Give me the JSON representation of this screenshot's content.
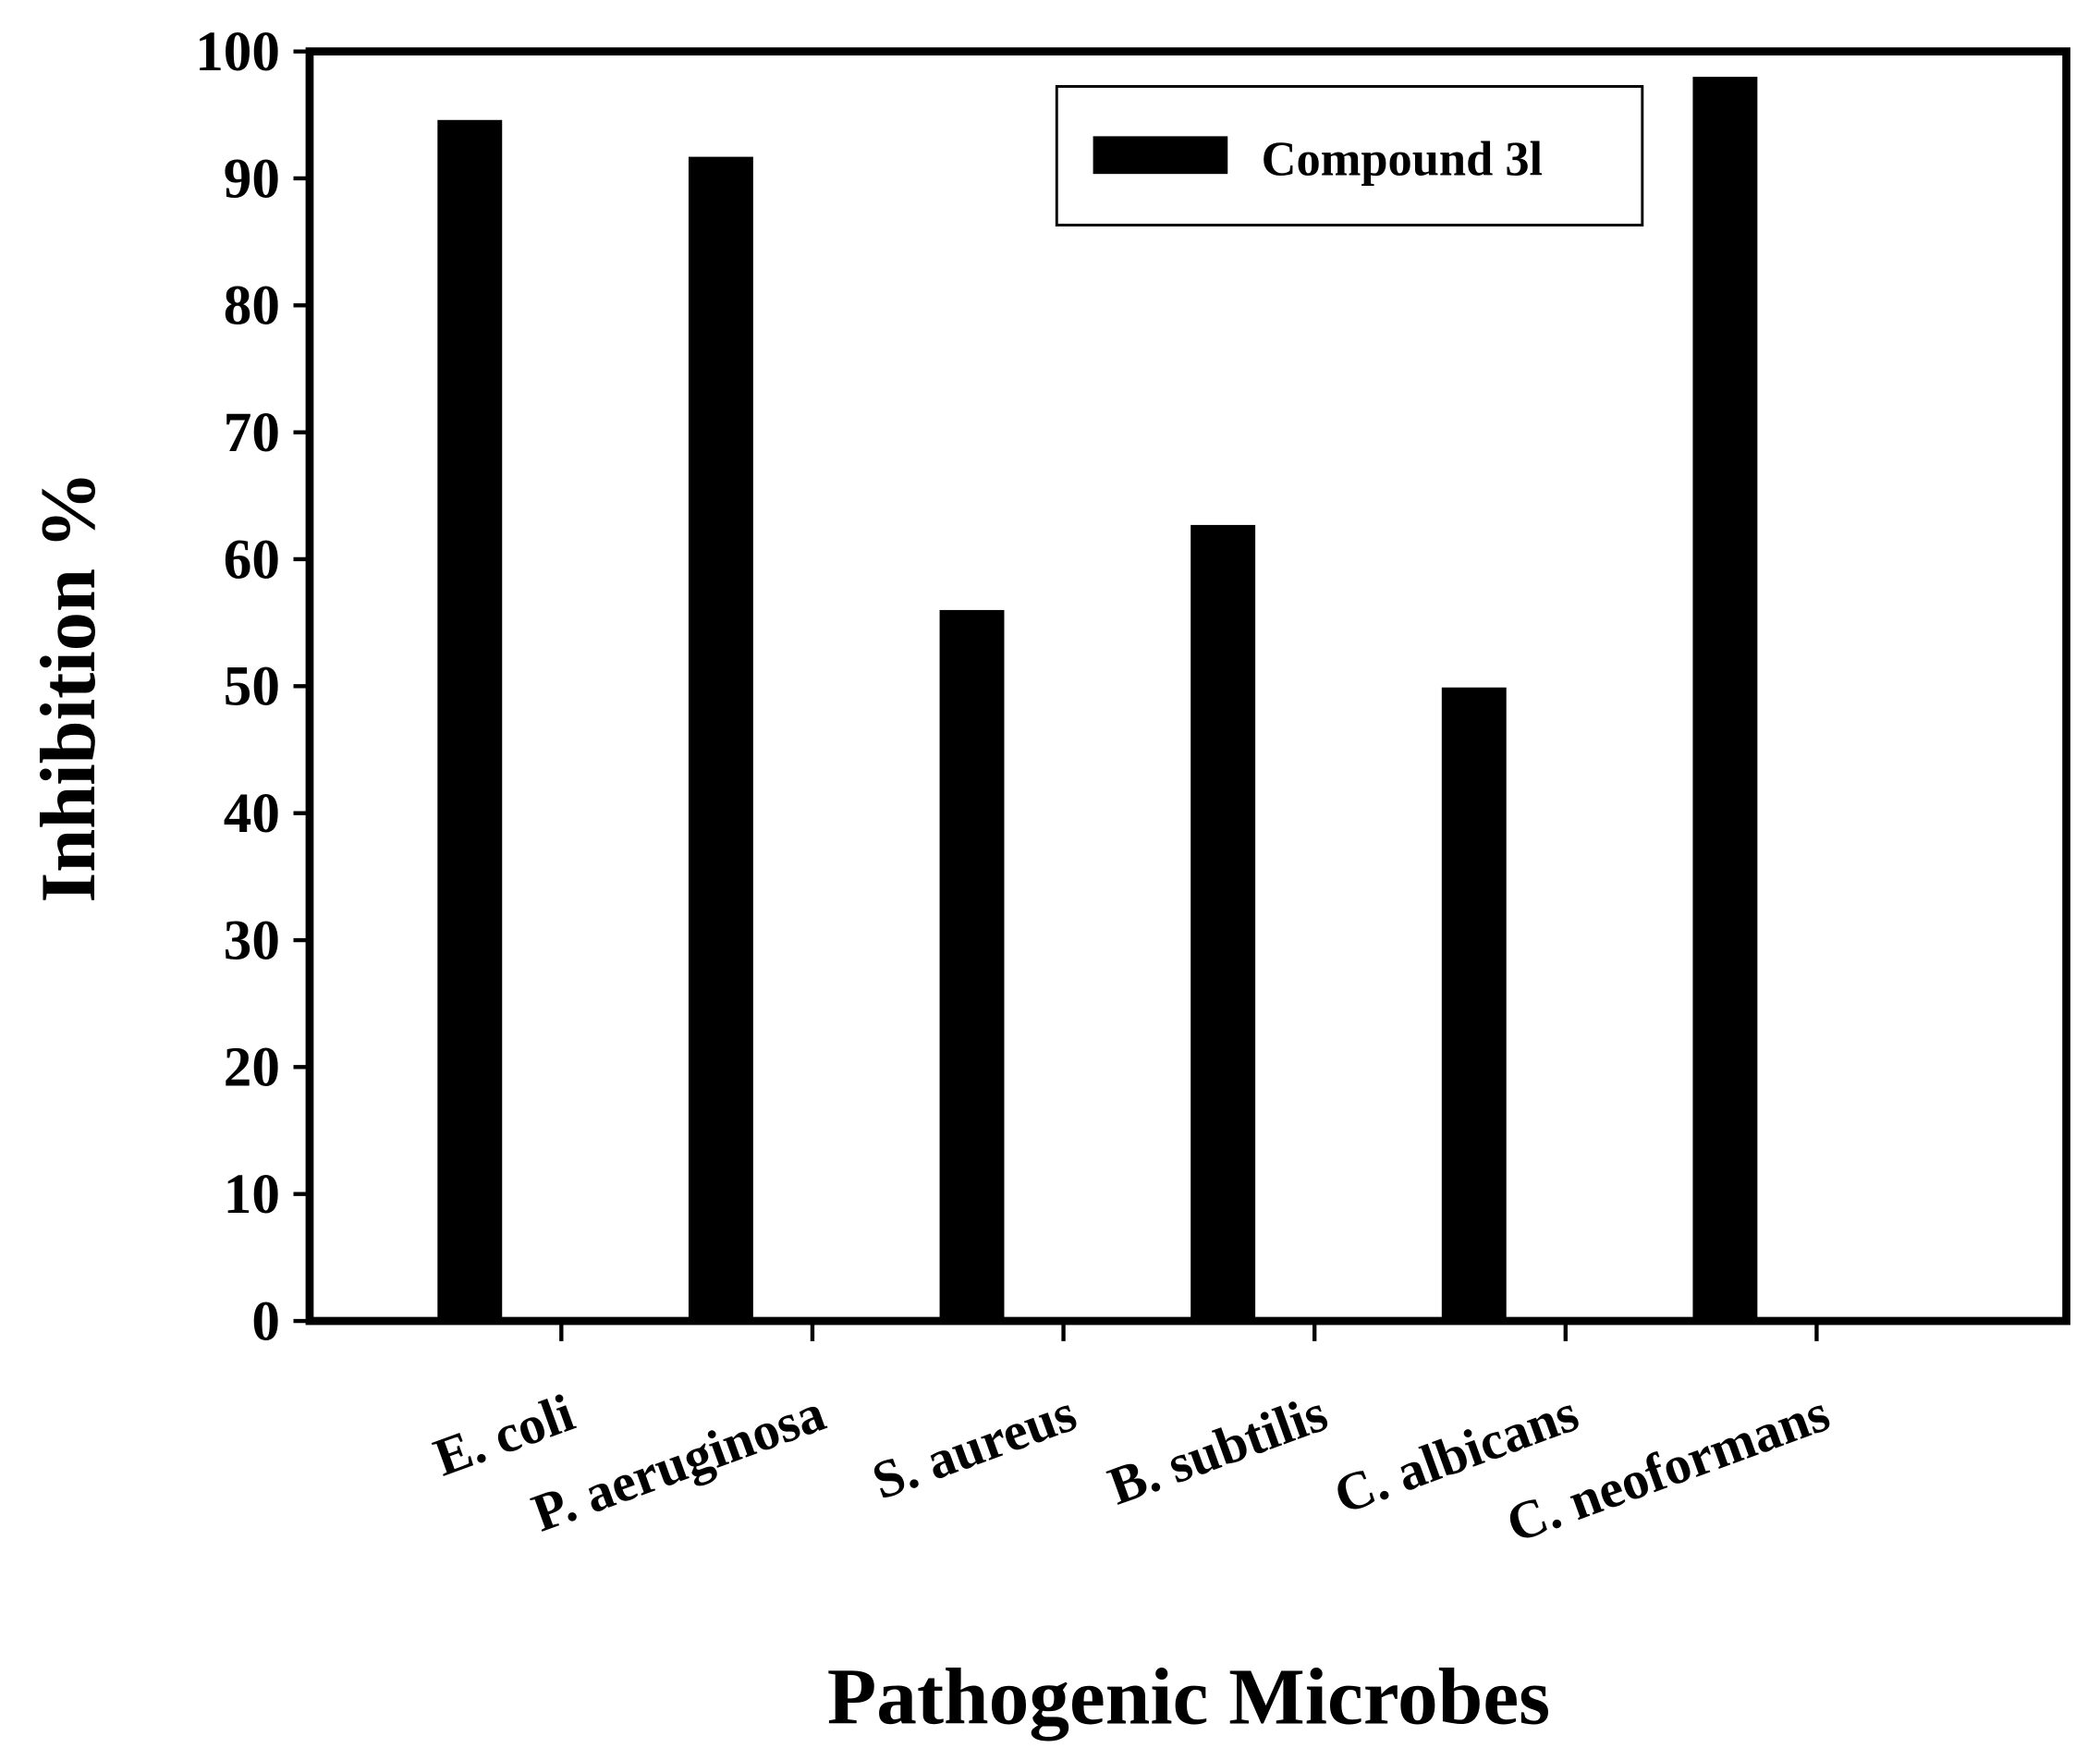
{
  "chart_data": {
    "type": "bar",
    "title": "",
    "xlabel": "Pathogenic Microbes",
    "ylabel": "Inhibition %",
    "ylim": [
      0,
      100
    ],
    "yticks": [
      "0",
      "10",
      "20",
      "30",
      "40",
      "50",
      "60",
      "70",
      "80",
      "90",
      "100"
    ],
    "categories": [
      "E. coli",
      "P. aeruginosa",
      "S. aureus",
      "B. subtilis",
      "C. albicans",
      "C. neoformans"
    ],
    "series": [
      {
        "name": "Compound 3l",
        "values": [
          94.6,
          91.7,
          56.0,
          62.7,
          49.9,
          98.0
        ],
        "color": "#000000"
      }
    ],
    "legend": {
      "placement": "top-right",
      "entries": [
        "Compound 3l"
      ]
    },
    "grid": false
  }
}
